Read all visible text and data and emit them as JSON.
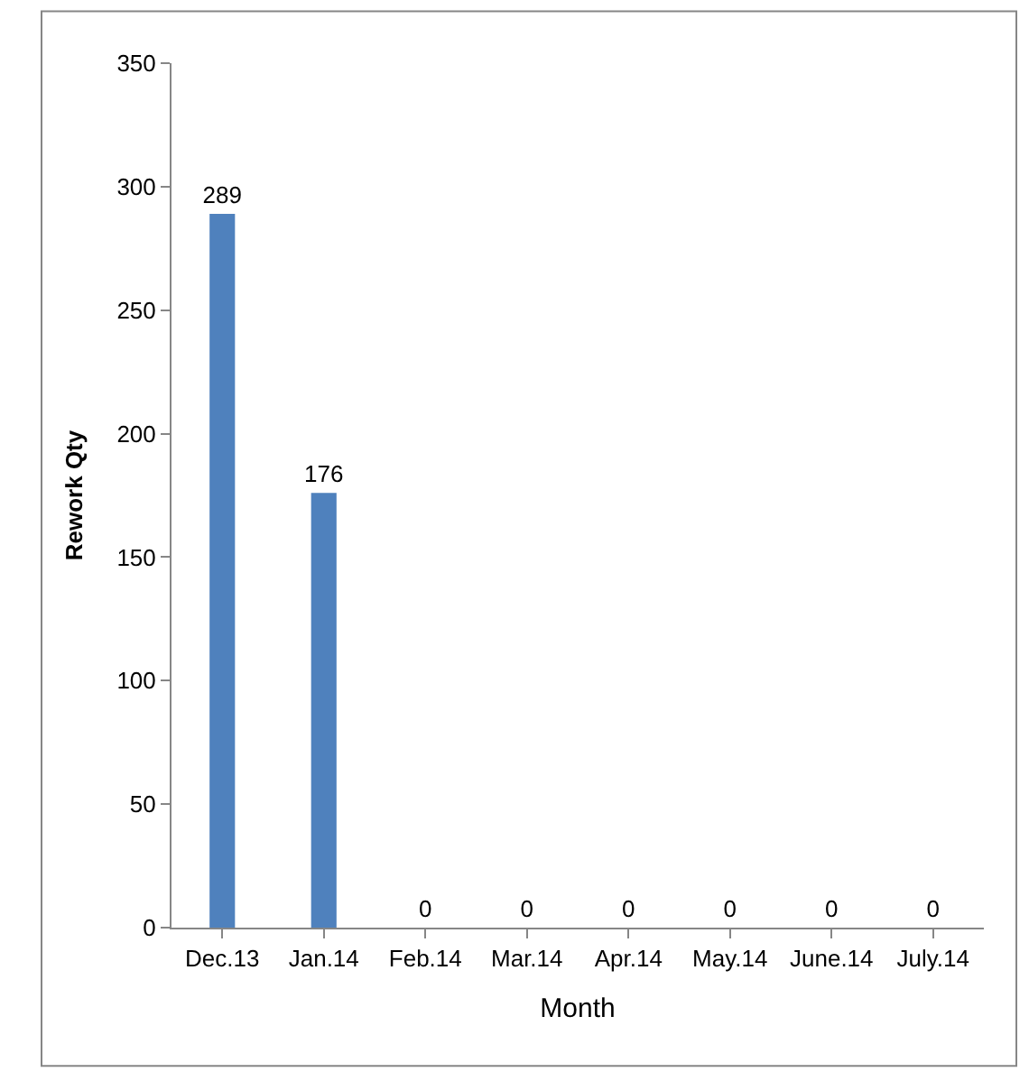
{
  "chart_data": {
    "type": "bar",
    "xlabel": "Month",
    "ylabel": "Rework Qty",
    "categories": [
      "Dec.13",
      "Jan.14",
      "Feb.14",
      "Mar.14",
      "Apr.14",
      "May.14",
      "June.14",
      "July.14"
    ],
    "values": [
      289,
      176,
      0,
      0,
      0,
      0,
      0,
      0
    ],
    "color": "#4f81bd",
    "ylim": [
      0,
      350
    ],
    "yticks": [
      0,
      50,
      100,
      150,
      200,
      250,
      300,
      350
    ],
    "data_labels": true
  }
}
